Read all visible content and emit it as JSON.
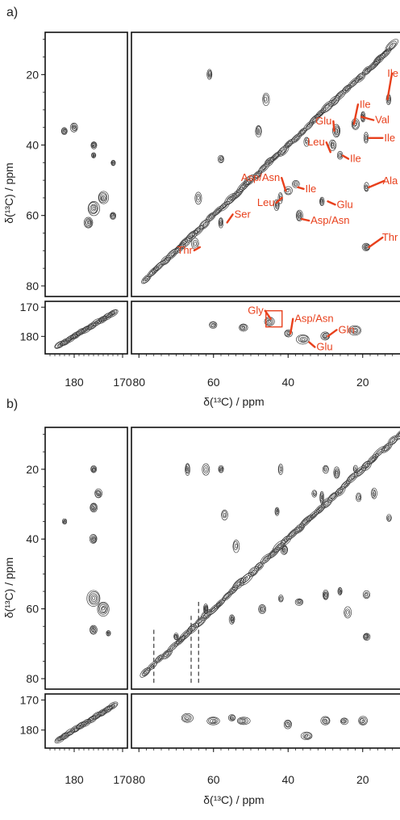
{
  "figure": {
    "panels": [
      {
        "id": "a",
        "label": "a)",
        "ylabel": "δ(¹³C) / ppm",
        "xlabel": "δ(¹³C) / ppm",
        "colors": {
          "contour": "#3a3a3a",
          "annotation": "#e8401c"
        },
        "annotations": [
          {
            "text": "Ile",
            "peak": [
              14,
              27
            ]
          },
          {
            "text": "Ile",
            "peak": [
              23,
              34
            ]
          },
          {
            "text": "Val",
            "peak": [
              21,
              32
            ]
          },
          {
            "text": "Glu",
            "peak": [
              27,
              36
            ]
          },
          {
            "text": "Ile",
            "peak": [
              19,
              38
            ]
          },
          {
            "text": "Leu",
            "peak": [
              28,
              42
            ]
          },
          {
            "text": "Ile",
            "peak": [
              26,
              43
            ]
          },
          {
            "text": "Ala",
            "peak": [
              19,
              52
            ]
          },
          {
            "text": "Asp/Asn",
            "peak": [
              40,
              53
            ]
          },
          {
            "text": "Ile",
            "peak": [
              38,
              52
            ]
          },
          {
            "text": "Leu",
            "peak": [
              41,
              55
            ]
          },
          {
            "text": "Glu",
            "peak": [
              30,
              56
            ]
          },
          {
            "text": "Ser",
            "peak": [
              57,
              62
            ]
          },
          {
            "text": "Asp/Asn",
            "peak": [
              37,
              61
            ]
          },
          {
            "text": "Thr",
            "peak": [
              63,
              69
            ]
          },
          {
            "text": "Thr",
            "peak": [
              19,
              69
            ]
          },
          {
            "text": "Gly",
            "peak": [
              44,
              174
            ]
          },
          {
            "text": "Asp/Asn",
            "peak": [
              40,
              179
            ]
          },
          {
            "text": "Gln",
            "peak": [
              30,
              180
            ]
          },
          {
            "text": "Glu",
            "peak": [
              35,
              182
            ]
          }
        ]
      },
      {
        "id": "b",
        "label": "b)",
        "ylabel": "δ(¹³C) / ppm",
        "xlabel": "δ(¹³C) / ppm",
        "colors": {
          "contour": "#3a3a3a"
        },
        "annotations": []
      }
    ]
  },
  "chart_data": [
    {
      "type": "heatmap",
      "subtype": "2D 13C-13C correlation spectrum (contour plot)",
      "panel": "a)",
      "xlabel": "δ(¹³C) / ppm",
      "ylabel": "δ(¹³C) / ppm",
      "x_ticks_main": [
        80,
        60,
        40,
        20
      ],
      "x_ticks_carbonyl": [
        180,
        170
      ],
      "y_ticks_main": [
        20,
        40,
        60,
        80
      ],
      "y_ticks_carbonyl": [
        170,
        180
      ],
      "xlim_main": [
        82,
        10
      ],
      "xlim_carbonyl": [
        186,
        169
      ],
      "ylim_main": [
        8,
        83
      ],
      "ylim_carbonyl": [
        168,
        186
      ],
      "diagonal": [
        [
          78,
          78
        ],
        [
          12,
          12
        ]
      ],
      "peaks": [
        {
          "x": 61,
          "y": 20
        },
        {
          "x": 46,
          "y": 27
        },
        {
          "x": 48,
          "y": 36
        },
        {
          "x": 35,
          "y": 39
        },
        {
          "x": 27,
          "y": 36
        },
        {
          "x": 28,
          "y": 40
        },
        {
          "x": 26,
          "y": 43
        },
        {
          "x": 19,
          "y": 38
        },
        {
          "x": 20,
          "y": 32
        },
        {
          "x": 13,
          "y": 27
        },
        {
          "x": 22,
          "y": 34
        },
        {
          "x": 40,
          "y": 53
        },
        {
          "x": 38,
          "y": 51
        },
        {
          "x": 42,
          "y": 55
        },
        {
          "x": 31,
          "y": 56
        },
        {
          "x": 19,
          "y": 52
        },
        {
          "x": 64,
          "y": 55
        },
        {
          "x": 58,
          "y": 62
        },
        {
          "x": 65,
          "y": 68
        },
        {
          "x": 19,
          "y": 69
        },
        {
          "x": 37,
          "y": 60
        },
        {
          "x": 43,
          "y": 57
        },
        {
          "x": 58,
          "y": 44
        }
      ],
      "carbonyl_peaks": [
        {
          "x": 60,
          "y": 176
        },
        {
          "x": 52,
          "y": 177
        },
        {
          "x": 45,
          "y": 175
        },
        {
          "x": 40,
          "y": 179
        },
        {
          "x": 36,
          "y": 181
        },
        {
          "x": 30,
          "y": 180
        },
        {
          "x": 22,
          "y": 178
        }
      ]
    },
    {
      "type": "heatmap",
      "subtype": "2D 13C-13C correlation spectrum (contour plot)",
      "panel": "b)",
      "xlabel": "δ(¹³C) / ppm",
      "ylabel": "δ(¹³C) / ppm",
      "x_ticks_main": [
        80,
        60,
        40,
        20
      ],
      "x_ticks_carbonyl": [
        180,
        170
      ],
      "y_ticks_main": [
        20,
        40,
        60,
        80
      ],
      "y_ticks_carbonyl": [
        170,
        180
      ],
      "xlim_main": [
        82,
        10
      ],
      "xlim_carbonyl": [
        186,
        169
      ],
      "ylim_main": [
        8,
        83
      ],
      "ylim_carbonyl": [
        168,
        186
      ],
      "diagonal": [
        [
          78,
          78
        ],
        [
          10,
          10
        ]
      ],
      "peaks": [
        {
          "x": 67,
          "y": 20
        },
        {
          "x": 62,
          "y": 20
        },
        {
          "x": 58,
          "y": 20
        },
        {
          "x": 42,
          "y": 20
        },
        {
          "x": 30,
          "y": 20
        },
        {
          "x": 27,
          "y": 21
        },
        {
          "x": 22,
          "y": 20
        },
        {
          "x": 57,
          "y": 33
        },
        {
          "x": 43,
          "y": 32
        },
        {
          "x": 54,
          "y": 42
        },
        {
          "x": 41,
          "y": 43
        },
        {
          "x": 33,
          "y": 27
        },
        {
          "x": 31,
          "y": 28
        },
        {
          "x": 21,
          "y": 28
        },
        {
          "x": 17,
          "y": 27
        },
        {
          "x": 13,
          "y": 34
        },
        {
          "x": 42,
          "y": 57
        },
        {
          "x": 37,
          "y": 58
        },
        {
          "x": 30,
          "y": 56
        },
        {
          "x": 26,
          "y": 55
        },
        {
          "x": 19,
          "y": 56
        },
        {
          "x": 55,
          "y": 63
        },
        {
          "x": 19,
          "y": 68
        },
        {
          "x": 70,
          "y": 68
        },
        {
          "x": 62,
          "y": 60
        },
        {
          "x": 47,
          "y": 60
        },
        {
          "x": 24,
          "y": 61
        }
      ],
      "carbonyl_peaks": [
        {
          "x": 67,
          "y": 176
        },
        {
          "x": 60,
          "y": 177
        },
        {
          "x": 55,
          "y": 176
        },
        {
          "x": 52,
          "y": 177
        },
        {
          "x": 40,
          "y": 178
        },
        {
          "x": 35,
          "y": 182
        },
        {
          "x": 30,
          "y": 177
        },
        {
          "x": 25,
          "y": 177
        },
        {
          "x": 20,
          "y": 177
        }
      ]
    }
  ]
}
